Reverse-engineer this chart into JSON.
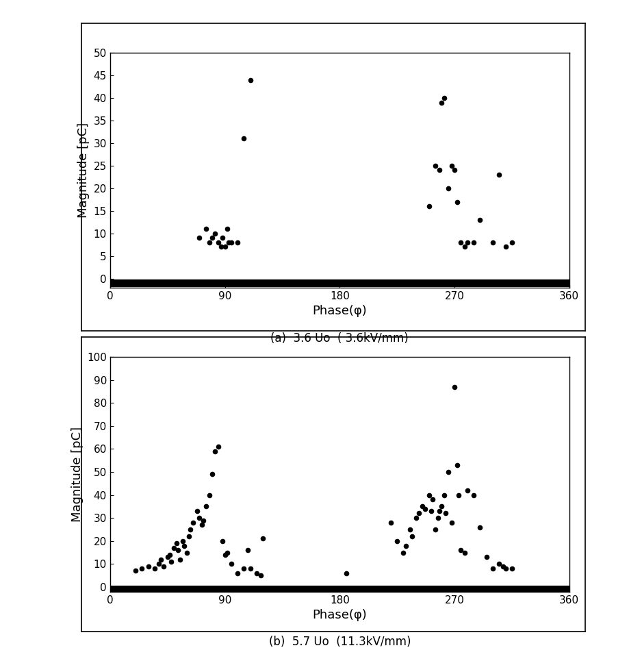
{
  "plot_a": {
    "x": [
      70,
      75,
      78,
      80,
      82,
      85,
      87,
      88,
      90,
      92,
      93,
      95,
      100,
      105,
      110,
      250,
      255,
      258,
      260,
      262,
      265,
      268,
      270,
      272,
      275,
      278,
      280,
      285,
      290,
      300,
      305,
      310,
      315
    ],
    "y": [
      9,
      11,
      8,
      9,
      10,
      8,
      7,
      9,
      7,
      11,
      8,
      8,
      8,
      31,
      44,
      16,
      25,
      24,
      39,
      40,
      20,
      25,
      24,
      17,
      8,
      7,
      8,
      8,
      13,
      8,
      23,
      7,
      8
    ],
    "ylabel": "Magnitude [pC]",
    "xlabel": "Phase(φ)",
    "ylim": [
      -2,
      50
    ],
    "yticks": [
      0,
      5,
      10,
      15,
      20,
      25,
      30,
      35,
      40,
      45,
      50
    ],
    "xlim": [
      0,
      360
    ],
    "xticks": [
      0,
      90,
      180,
      270,
      360
    ],
    "caption": "(a)  3.6 Uo  ( 3.6kV/mm)"
  },
  "plot_b": {
    "x": [
      20,
      25,
      30,
      35,
      38,
      40,
      42,
      45,
      47,
      48,
      50,
      52,
      53,
      55,
      57,
      58,
      60,
      62,
      63,
      65,
      68,
      70,
      72,
      73,
      75,
      78,
      80,
      82,
      85,
      88,
      90,
      92,
      95,
      100,
      105,
      108,
      110,
      115,
      118,
      120,
      185,
      220,
      225,
      230,
      232,
      235,
      237,
      240,
      242,
      245,
      247,
      250,
      252,
      253,
      255,
      257,
      258,
      260,
      262,
      263,
      265,
      268,
      270,
      272,
      273,
      275,
      278,
      280,
      285,
      290,
      295,
      300,
      305,
      308,
      310,
      315
    ],
    "y": [
      7,
      8,
      9,
      8,
      10,
      12,
      9,
      13,
      14,
      11,
      17,
      19,
      16,
      12,
      20,
      18,
      15,
      22,
      25,
      28,
      33,
      30,
      27,
      29,
      35,
      40,
      49,
      59,
      61,
      20,
      14,
      15,
      10,
      6,
      8,
      16,
      8,
      6,
      5,
      21,
      6,
      28,
      20,
      15,
      18,
      25,
      22,
      30,
      32,
      35,
      34,
      40,
      33,
      38,
      25,
      30,
      33,
      35,
      40,
      32,
      50,
      28,
      87,
      53,
      40,
      16,
      15,
      42,
      40,
      26,
      13,
      8,
      10,
      9,
      8,
      8
    ],
    "ylabel": "Magnitude [pC]",
    "xlabel": "Phase(φ)",
    "ylim": [
      -2,
      100
    ],
    "yticks": [
      0,
      10,
      20,
      30,
      40,
      50,
      60,
      70,
      80,
      90,
      100
    ],
    "xlim": [
      0,
      360
    ],
    "xticks": [
      0,
      90,
      180,
      270,
      360
    ],
    "caption": "(b)  5.7 Uo  (11.3kV/mm)"
  },
  "dot_color": "#000000",
  "dot_size": 20,
  "background_color": "#ffffff",
  "box_color": "#000000",
  "baseline_y": -1,
  "baseline_lw": 8,
  "fig_width": 9.19,
  "fig_height": 9.65
}
